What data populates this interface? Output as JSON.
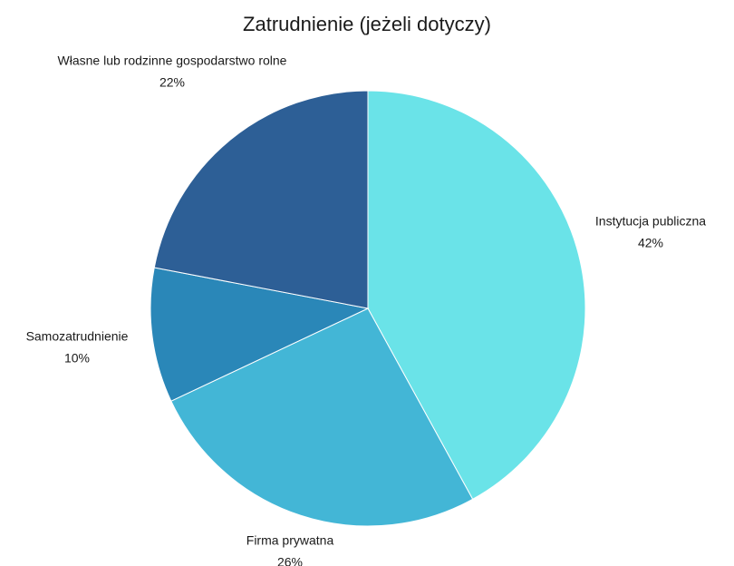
{
  "chart_data": {
    "type": "pie",
    "title": "Zatrudnienie (jeżeli dotyczy)",
    "categories": [
      "Instytucja publiczna",
      "Firma prywatna",
      "Samozatrudnienie",
      "Własne lub rodzinne gospodarstwo rolne"
    ],
    "values": [
      42,
      26,
      10,
      22
    ],
    "value_labels": [
      "42%",
      "26%",
      "10%",
      "22%"
    ],
    "colors": [
      "#6ae3e8",
      "#43b6d6",
      "#2a87b8",
      "#2d5f96"
    ]
  }
}
